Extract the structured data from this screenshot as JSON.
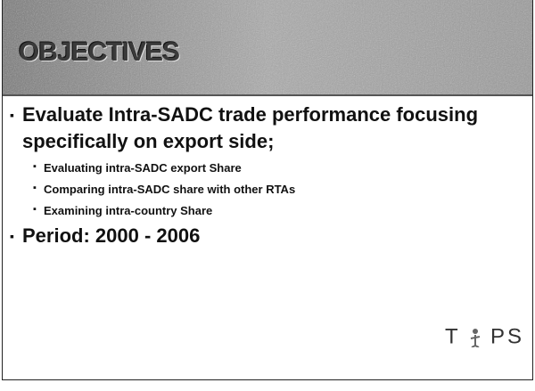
{
  "header": {
    "title": "OBJECTIVES"
  },
  "bullets": [
    {
      "text": "Evaluate Intra-SADC trade performance focusing specifically on export side;",
      "subbullets": [
        "Evaluating intra-SADC export Share",
        "Comparing intra-SADC share with other RTAs",
        "Examining intra-country Share"
      ]
    },
    {
      "text": "Period: 2000 - 2006",
      "subbullets": []
    }
  ],
  "logo": {
    "left": "T",
    "right": "PS"
  }
}
